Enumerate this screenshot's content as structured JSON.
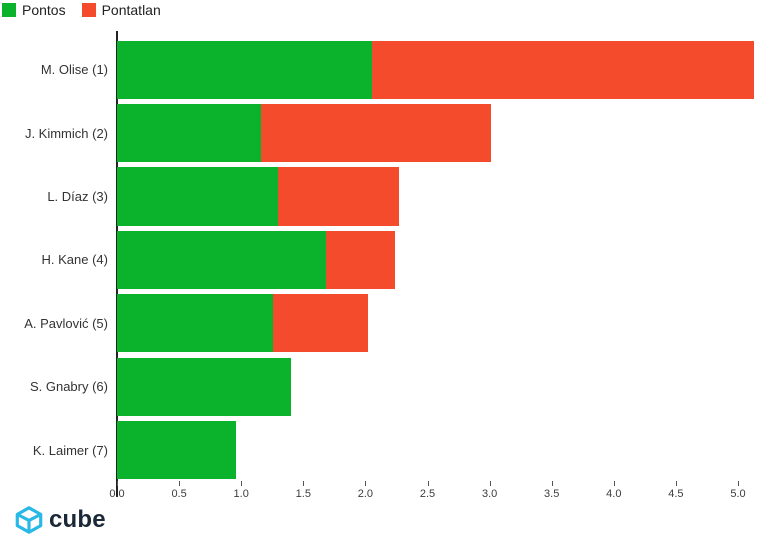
{
  "legend": {
    "items": [
      {
        "label": "Pontos",
        "color": "#0bb32d"
      },
      {
        "label": "Pontatlan",
        "color": "#f44b2d"
      }
    ]
  },
  "chart_data": {
    "type": "bar",
    "orientation": "horizontal",
    "stacked": true,
    "title": "",
    "xlabel": "",
    "ylabel": "",
    "grid": false,
    "legend_position": "top-left",
    "categories": [
      "M. Olise (1)",
      "J. Kimmich (2)",
      "L. Díaz (3)",
      "H. Kane (4)",
      "A. Pavlović (5)",
      "S. Gnabry (6)",
      "K. Laimer (7)"
    ],
    "series": [
      {
        "name": "Pontos",
        "color": "#0bb32d",
        "values": [
          2.05,
          1.16,
          1.3,
          1.68,
          1.26,
          1.4,
          0.96
        ]
      },
      {
        "name": "Pontatlan",
        "color": "#f44b2d",
        "values": [
          3.08,
          1.85,
          0.97,
          0.56,
          0.76,
          0.0,
          0.0
        ]
      }
    ],
    "totals": [
      5.13,
      3.01,
      2.27,
      2.24,
      2.02,
      1.4,
      0.96
    ],
    "xlim": [
      0,
      5.25
    ],
    "x_ticks": [
      0,
      0.5,
      1.0,
      1.5,
      2.0,
      2.5,
      3.0,
      3.5,
      4.0,
      4.5,
      5.0
    ],
    "x_tick_labels": [
      "0.0",
      "0.5",
      "1.0",
      "1.5",
      "2.0",
      "2.5",
      "3.0",
      "3.5",
      "4.0",
      "4.5",
      "5.0"
    ]
  },
  "branding": {
    "logo_text": "cube",
    "logo_text_color": "#1b2837",
    "icon_name": "cube-logo-icon",
    "icon_color": "#2ab8e6"
  }
}
